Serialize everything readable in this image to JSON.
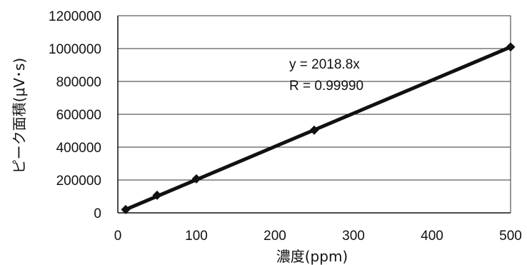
{
  "chart_data": {
    "type": "scatter",
    "title": "",
    "xlabel": "濃度(ppm)",
    "ylabel": "ピーク面積(μV･s)",
    "xlim": [
      0,
      500
    ],
    "ylim": [
      0,
      1200000
    ],
    "x_ticks": [
      0,
      100,
      200,
      300,
      400,
      500
    ],
    "y_ticks": [
      0,
      200000,
      400000,
      600000,
      800000,
      1000000,
      1200000
    ],
    "x_tick_labels": [
      "0",
      "100",
      "200",
      "300",
      "400",
      "500"
    ],
    "y_tick_labels": [
      "0",
      "200000",
      "400000",
      "600000",
      "800000",
      "1000000",
      "1200000"
    ],
    "grid": {
      "horizontal": true,
      "vertical": false
    },
    "legend": "none",
    "series": [
      {
        "marker": "diamond",
        "color": "#111111",
        "points": [
          {
            "x": 10,
            "y": 20000
          },
          {
            "x": 50,
            "y": 107000
          },
          {
            "x": 100,
            "y": 207000
          },
          {
            "x": 250,
            "y": 503000
          },
          {
            "x": 500,
            "y": 1010000
          }
        ]
      }
    ],
    "trendline": {
      "slope": 2018.8,
      "intercept": 0,
      "x_range": [
        10,
        500
      ],
      "color": "#111111"
    },
    "annotations": [
      {
        "text": "y = 2018.8x"
      },
      {
        "text": "R = 0.99990"
      }
    ]
  }
}
